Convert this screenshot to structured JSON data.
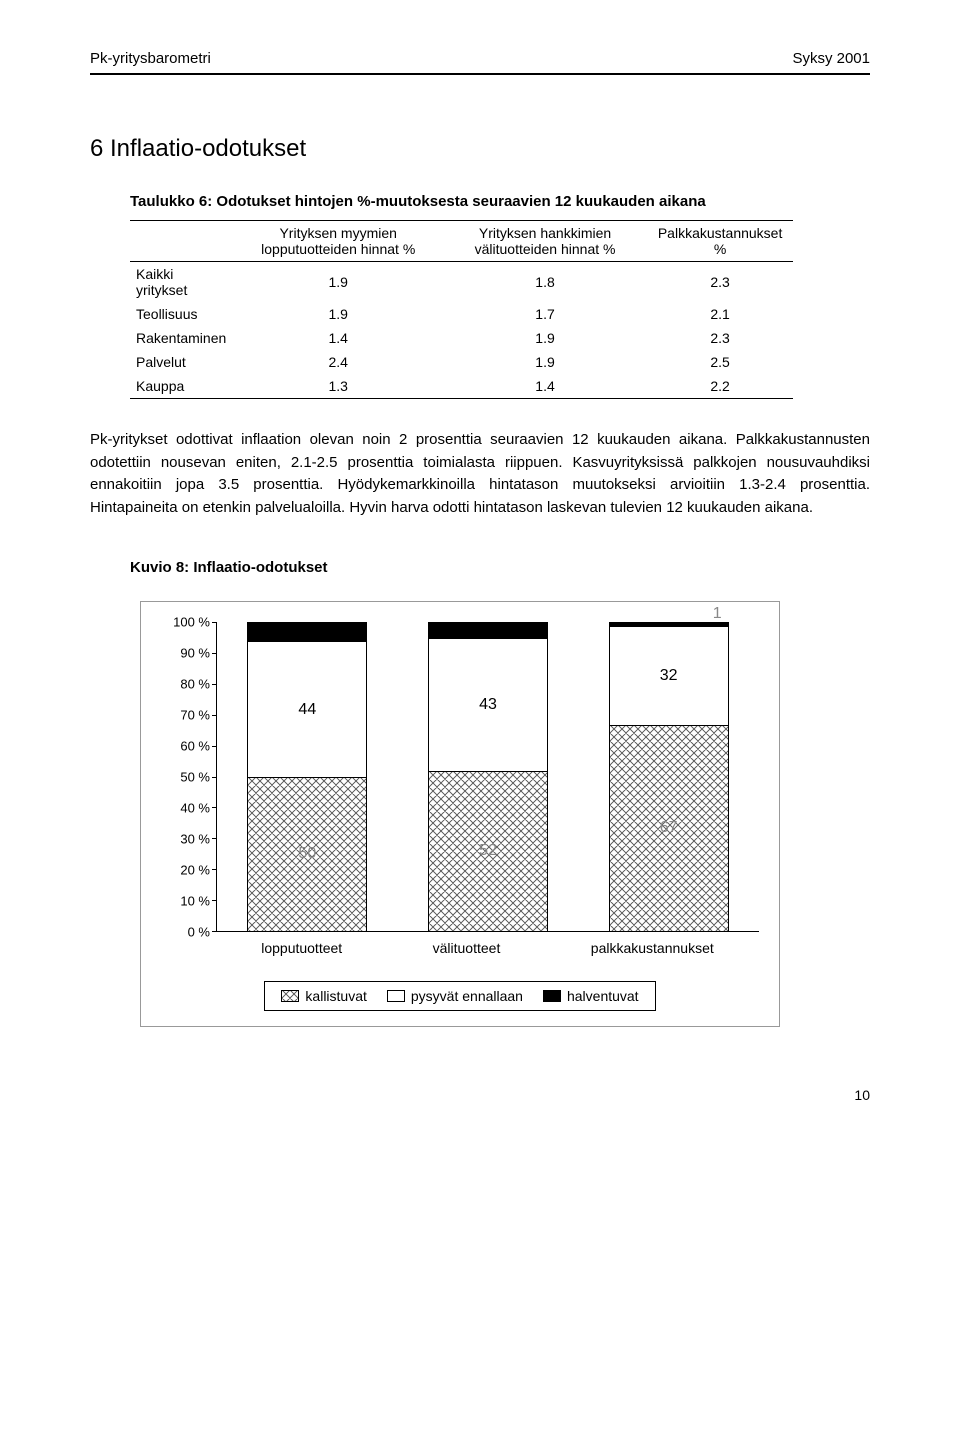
{
  "header": {
    "left": "Pk-yritysbarometri",
    "right": "Syksy 2001"
  },
  "section_title": "6 Inflaatio-odotukset",
  "table": {
    "caption": "Taulukko 6: Odotukset hintojen %-muutoksesta seuraavien 12 kuukauden aikana",
    "columns": [
      "",
      "Yrityksen myymien lopputuotteiden hinnat %",
      "Yrityksen hankkimien välituotteiden hinnat %",
      "Palkkakustannukset %"
    ],
    "rows": [
      [
        "Kaikki yritykset",
        "1.9",
        "1.8",
        "2.3"
      ],
      [
        "Teollisuus",
        "1.9",
        "1.7",
        "2.1"
      ],
      [
        "Rakentaminen",
        "1.4",
        "1.9",
        "2.3"
      ],
      [
        "Palvelut",
        "2.4",
        "1.9",
        "2.5"
      ],
      [
        "Kauppa",
        "1.3",
        "1.4",
        "2.2"
      ]
    ]
  },
  "paragraph": "Pk-yritykset odottivat inflaation olevan noin 2 prosenttia seuraavien 12 kuukauden aikana. Palkkakustannusten odotettiin nousevan eniten, 2.1-2.5 prosenttia toimialasta riippuen. Kasvuyrityksissä palkkojen nousuvauhdiksi ennakoitiin jopa 3.5 prosenttia. Hyödykemarkkinoilla hintatason muutokseksi arvioitiin 1.3-2.4 prosenttia. Hintapaineita on etenkin palvelualoilla. Hyvin harva odotti hintatason laskevan tulevien 12 kuukauden aikana.",
  "chart": {
    "caption": "Kuvio 8: Inflaatio-odotukset",
    "type": "stacked-bar",
    "y_labels": [
      "100 %",
      "90 %",
      "80 %",
      "70 %",
      "60 %",
      "50 %",
      "40 %",
      "30 %",
      "20 %",
      "10 %",
      "0 %"
    ],
    "y_tick_step": 10,
    "categories": [
      "lopputuotteet",
      "välituotteet",
      "palkkakustannukset"
    ],
    "segments": [
      "halventuvat",
      "pysyvät ennallaan",
      "kallistuvat"
    ],
    "data": [
      {
        "halventuvat": 6,
        "ennallaan": 44,
        "kallistuvat": 50
      },
      {
        "halventuvat": 5,
        "ennallaan": 43,
        "kallistuvat": 52
      },
      {
        "halventuvat": 1,
        "ennallaan": 32,
        "kallistuvat": 67
      }
    ],
    "visible_labels": [
      {
        "halventuvat": "",
        "ennallaan": "44",
        "kallistuvat": "50"
      },
      {
        "halventuvat": "",
        "ennallaan": "43",
        "kallistuvat": "52"
      },
      {
        "halventuvat": "1",
        "ennallaan": "32",
        "kallistuvat": "67"
      }
    ],
    "colors": {
      "halventuvat": "#000000",
      "ennallaan": "#ffffff",
      "kallistuvat_pattern": "crosshatch",
      "border": "#000000",
      "background": "#ffffff"
    },
    "legend": [
      "kallistuvat",
      "pysyvät ennallaan",
      "halventuvat"
    ]
  },
  "page_number": "10"
}
